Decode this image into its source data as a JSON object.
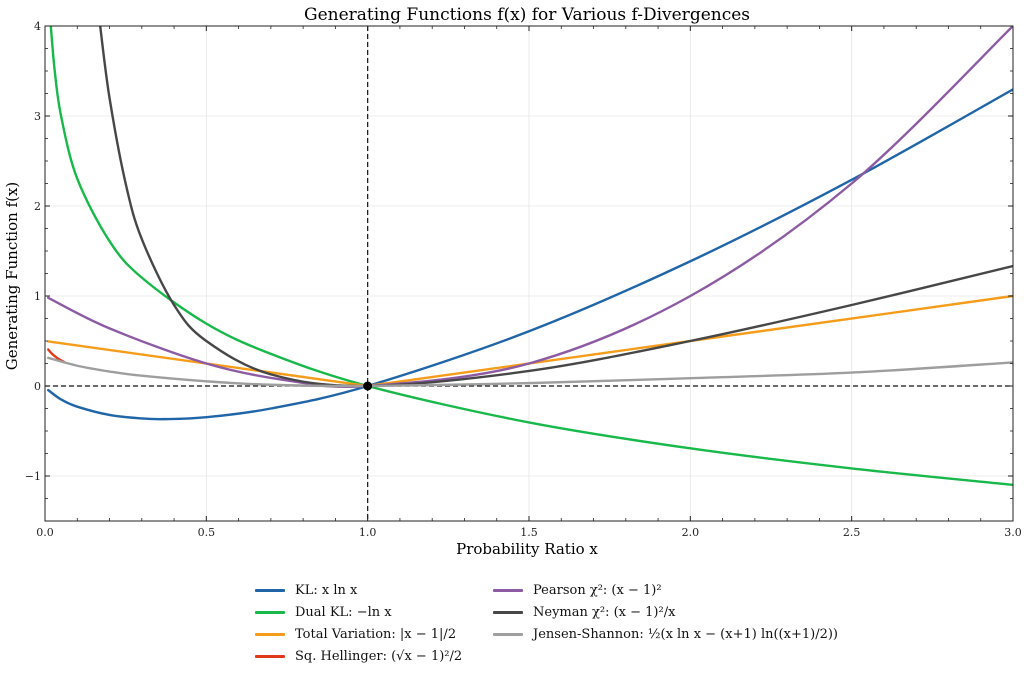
{
  "chart_data": {
    "type": "line",
    "title": "Generating Functions f(x) for Various f-Divergences",
    "xlabel": "Probability Ratio x",
    "ylabel": "Generating Function f(x)",
    "xlim": [
      0.0,
      3.0
    ],
    "ylim": [
      -1.5,
      4.0
    ],
    "grid": true,
    "xticks": [
      0.0,
      0.5,
      1.0,
      1.5,
      2.0,
      2.5,
      3.0
    ],
    "xtick_labels": [
      "0.0",
      "0.5",
      "1.0",
      "1.5",
      "2.0",
      "2.5",
      "3.0"
    ],
    "yticks": [
      -1,
      0,
      1,
      2,
      3,
      4
    ],
    "ytick_labels": [
      "−1",
      "0",
      "1",
      "2",
      "3",
      "4"
    ],
    "reference_lines": {
      "horizontal_y": 0,
      "vertical_x": 1.0,
      "style": "dashed"
    },
    "marked_point": {
      "x": 1.0,
      "y": 0.0
    },
    "legend_position": "below",
    "series": [
      {
        "name": "KL",
        "label": "KL: x ln x",
        "color": "#1f65a8",
        "x": [
          0.01,
          0.05,
          0.1,
          0.2,
          0.3,
          0.368,
          0.5,
          0.7,
          1.0,
          1.5,
          2.0,
          2.5,
          3.0
        ],
        "y": [
          -0.046,
          -0.15,
          -0.23,
          -0.322,
          -0.361,
          -0.368,
          -0.347,
          -0.25,
          0.0,
          0.608,
          1.386,
          2.291,
          3.296
        ]
      },
      {
        "name": "Dual KL",
        "label": "Dual KL: −ln x",
        "color": "#18b84a",
        "x": [
          0.018,
          0.03,
          0.05,
          0.1,
          0.2,
          0.3,
          0.5,
          0.7,
          1.0,
          1.5,
          2.0,
          2.5,
          3.0
        ],
        "y": [
          4.0,
          3.507,
          2.996,
          2.303,
          1.609,
          1.204,
          0.693,
          0.357,
          0.0,
          -0.405,
          -0.693,
          -0.916,
          -1.099
        ]
      },
      {
        "name": "Total Variation",
        "label": "Total Variation: |x − 1|/2",
        "color": "#f59c1a",
        "x": [
          0.01,
          1.0,
          3.0
        ],
        "y": [
          0.495,
          0.0,
          1.0
        ]
      },
      {
        "name": "Sq. Hellinger",
        "label": "Sq. Hellinger: (√x − 1)²/2",
        "color": "#e03a1a",
        "x": [
          0.01,
          0.02,
          0.03,
          0.04,
          0.05,
          0.06
        ],
        "y": [
          0.405,
          0.364,
          0.332,
          0.306,
          0.284,
          0.265
        ]
      },
      {
        "name": "Pearson χ²",
        "label": "Pearson χ²: (x − 1)²",
        "color": "#8c5ba3",
        "x": [
          0.01,
          0.2,
          0.5,
          0.75,
          1.0,
          1.5,
          2.0,
          2.5,
          3.0
        ],
        "y": [
          0.98,
          0.64,
          0.25,
          0.0625,
          0.0,
          0.25,
          1.0,
          2.25,
          4.0
        ]
      },
      {
        "name": "Neyman χ²",
        "label": "Neyman χ²: (x − 1)²/x",
        "color": "#474747",
        "x": [
          0.171,
          0.2,
          0.25,
          0.3,
          0.4,
          0.5,
          0.7,
          1.0,
          1.5,
          2.0,
          2.5,
          3.0
        ],
        "y": [
          4.0,
          3.2,
          2.25,
          1.633,
          0.9,
          0.5,
          0.129,
          0.0,
          0.167,
          0.5,
          0.9,
          1.333
        ]
      },
      {
        "name": "Jensen-Shannon",
        "label": "Jensen-Shannon: ½(x ln x − (x+1) ln((x+1)/2))",
        "color": "#9e9e9e",
        "x": [
          0.01,
          0.1,
          0.2,
          0.3,
          0.5,
          0.7,
          1.0,
          1.5,
          2.0,
          2.5,
          3.0
        ],
        "y": [
          0.313,
          0.225,
          0.161,
          0.114,
          0.052,
          0.014,
          0.0,
          0.032,
          0.087,
          0.149,
          0.262
        ]
      }
    ]
  }
}
